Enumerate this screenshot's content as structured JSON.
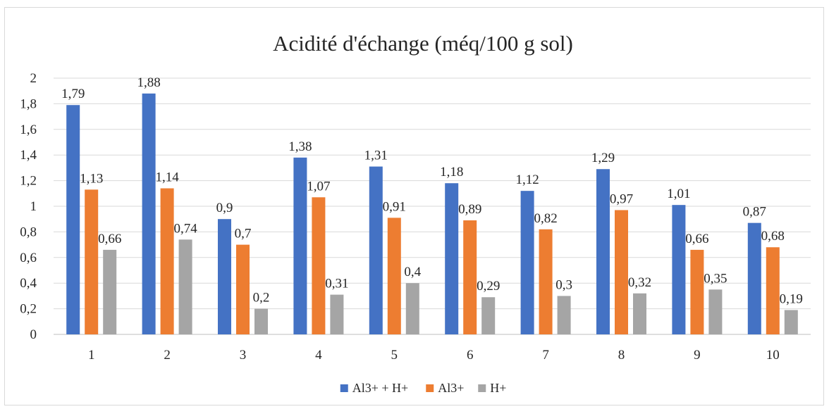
{
  "chart_data": {
    "type": "bar",
    "title": "Acidité d'échange (méq/100 g sol)",
    "xlabel": "",
    "ylabel": "",
    "categories": [
      "1",
      "2",
      "3",
      "4",
      "5",
      "6",
      "7",
      "8",
      "9",
      "10"
    ],
    "ylim": [
      0,
      2
    ],
    "yticks": [
      "0",
      "0,2",
      "0,4",
      "0,6",
      "0,8",
      "1",
      "1,2",
      "1,4",
      "1,6",
      "1,8",
      "2"
    ],
    "grid": true,
    "legend_position": "bottom",
    "series": [
      {
        "name": "Al3+ + H+",
        "color": "#4472c4",
        "values": [
          1.79,
          1.88,
          0.9,
          1.38,
          1.31,
          1.18,
          1.12,
          1.29,
          1.01,
          0.87
        ],
        "labels": [
          "1,79",
          "1,88",
          "0,9",
          "1,38",
          "1,31",
          "1,18",
          "1,12",
          "1,29",
          "1,01",
          "0,87"
        ]
      },
      {
        "name": "Al3+",
        "color": "#ed7d31",
        "values": [
          1.13,
          1.14,
          0.7,
          1.07,
          0.91,
          0.89,
          0.82,
          0.97,
          0.66,
          0.68
        ],
        "labels": [
          "1,13",
          "1,14",
          "0,7",
          "1,07",
          "0,91",
          "0,89",
          "0,82",
          "0,97",
          "0,66",
          "0,68"
        ]
      },
      {
        "name": "H+",
        "color": "#a5a5a5",
        "values": [
          0.66,
          0.74,
          0.2,
          0.31,
          0.4,
          0.29,
          0.3,
          0.32,
          0.35,
          0.19
        ],
        "labels": [
          "0,66",
          "0,74",
          "0,2",
          "0,31",
          "0,4",
          "0,29",
          "0,3",
          "0,32",
          "0,35",
          "0,19"
        ]
      }
    ]
  }
}
